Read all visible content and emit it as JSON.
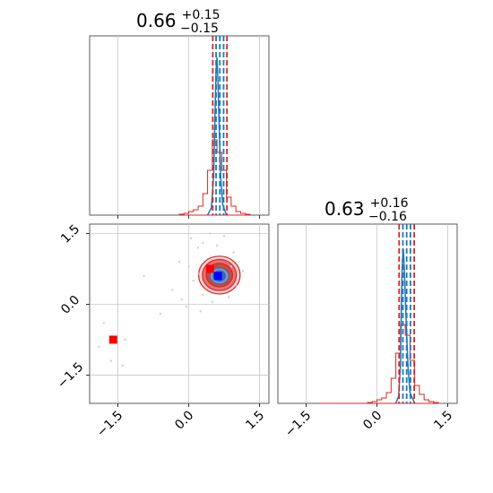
{
  "chart_data": {
    "type": "corner",
    "grid": true,
    "colors": {
      "blue": "#1f77b4",
      "red": "#d62728",
      "marker_blue": "#0000ff",
      "marker_red": "#ff0000",
      "light_red": "#f4a6a6"
    },
    "axis_range": [
      -2.1,
      1.7
    ],
    "ticks": [
      -1.5,
      0.0,
      1.5
    ],
    "tick_labels": [
      "−1.5",
      "0.0",
      "1.5"
    ],
    "titles": [
      {
        "median": "0.66",
        "plus": "+0.15",
        "minus": "−0.15"
      },
      {
        "median": "0.63",
        "plus": "+0.16",
        "minus": "−0.16"
      }
    ],
    "quantile_lines": {
      "param1": {
        "red": [
          0.51,
          0.81
        ],
        "blue": [
          0.58,
          0.66,
          0.74
        ]
      },
      "param2": {
        "red": [
          0.47,
          0.79
        ],
        "blue": [
          0.55,
          0.63,
          0.71
        ]
      }
    },
    "truth_markers": {
      "red": [
        [
          0.45,
          0.75
        ],
        [
          -1.6,
          -0.75
        ]
      ],
      "blue": [
        [
          0.62,
          0.6
        ]
      ]
    },
    "hist1_blue": [
      [
        0.4,
        0.0
      ],
      [
        0.48,
        0.04
      ],
      [
        0.53,
        0.22
      ],
      [
        0.56,
        0.6
      ],
      [
        0.58,
        0.8
      ],
      [
        0.6,
        0.88
      ],
      [
        0.62,
        0.75
      ],
      [
        0.65,
        0.45
      ],
      [
        0.68,
        0.2
      ],
      [
        0.72,
        0.06
      ],
      [
        0.8,
        0.0
      ]
    ],
    "hist1_red": {
      "edges": [
        -0.2,
        -0.1,
        0.0,
        0.1,
        0.2,
        0.3,
        0.4,
        0.5,
        0.6,
        0.7,
        0.8,
        0.9,
        1.0,
        1.1,
        1.2,
        1.3
      ],
      "counts": [
        0.005,
        0.01,
        0.02,
        0.03,
        0.05,
        0.12,
        0.25,
        0.42,
        0.35,
        0.25,
        0.1,
        0.05,
        0.02,
        0.01,
        0.005
      ]
    },
    "hist2_blue": [
      [
        0.4,
        0.0
      ],
      [
        0.46,
        0.04
      ],
      [
        0.5,
        0.22
      ],
      [
        0.52,
        0.6
      ],
      [
        0.54,
        0.8
      ],
      [
        0.56,
        0.86
      ],
      [
        0.58,
        0.75
      ],
      [
        0.62,
        0.45
      ],
      [
        0.66,
        0.2
      ],
      [
        0.7,
        0.06
      ],
      [
        0.8,
        0.0
      ]
    ],
    "hist2_red": {
      "edges": [
        -0.2,
        -0.1,
        0.0,
        0.1,
        0.2,
        0.3,
        0.4,
        0.5,
        0.6,
        0.7,
        0.8,
        0.9,
        1.0,
        1.1,
        1.2,
        1.3
      ],
      "counts": [
        0.005,
        0.01,
        0.02,
        0.03,
        0.06,
        0.14,
        0.28,
        0.44,
        0.38,
        0.24,
        0.1,
        0.05,
        0.02,
        0.01,
        0.005
      ]
    },
    "scatter_points": [
      [
        -1.9,
        -0.9
      ],
      [
        -1.65,
        -1.2
      ],
      [
        -1.35,
        -0.75
      ],
      [
        -1.8,
        -0.4
      ],
      [
        -0.6,
        -0.2
      ],
      [
        -0.2,
        0.9
      ],
      [
        -0.15,
        0.1
      ],
      [
        0.0,
        0.8
      ],
      [
        0.05,
        1.4
      ],
      [
        0.2,
        1.2
      ],
      [
        0.3,
        0.2
      ],
      [
        0.45,
        1.5
      ],
      [
        0.9,
        0.8
      ],
      [
        0.95,
        1.1
      ],
      [
        1.0,
        0.4
      ],
      [
        0.85,
        0.15
      ],
      [
        0.1,
        0.5
      ],
      [
        -0.05,
        -0.05
      ],
      [
        0.3,
        1.3
      ],
      [
        0.75,
        1.45
      ],
      [
        -1.4,
        -1.3
      ],
      [
        -0.95,
        0.6
      ],
      [
        0.25,
        -0.15
      ],
      [
        0.5,
        0.05
      ],
      [
        1.15,
        0.7
      ],
      [
        0.2,
        0.65
      ],
      [
        -0.35,
        0.3
      ],
      [
        0.6,
        1.25
      ]
    ]
  }
}
